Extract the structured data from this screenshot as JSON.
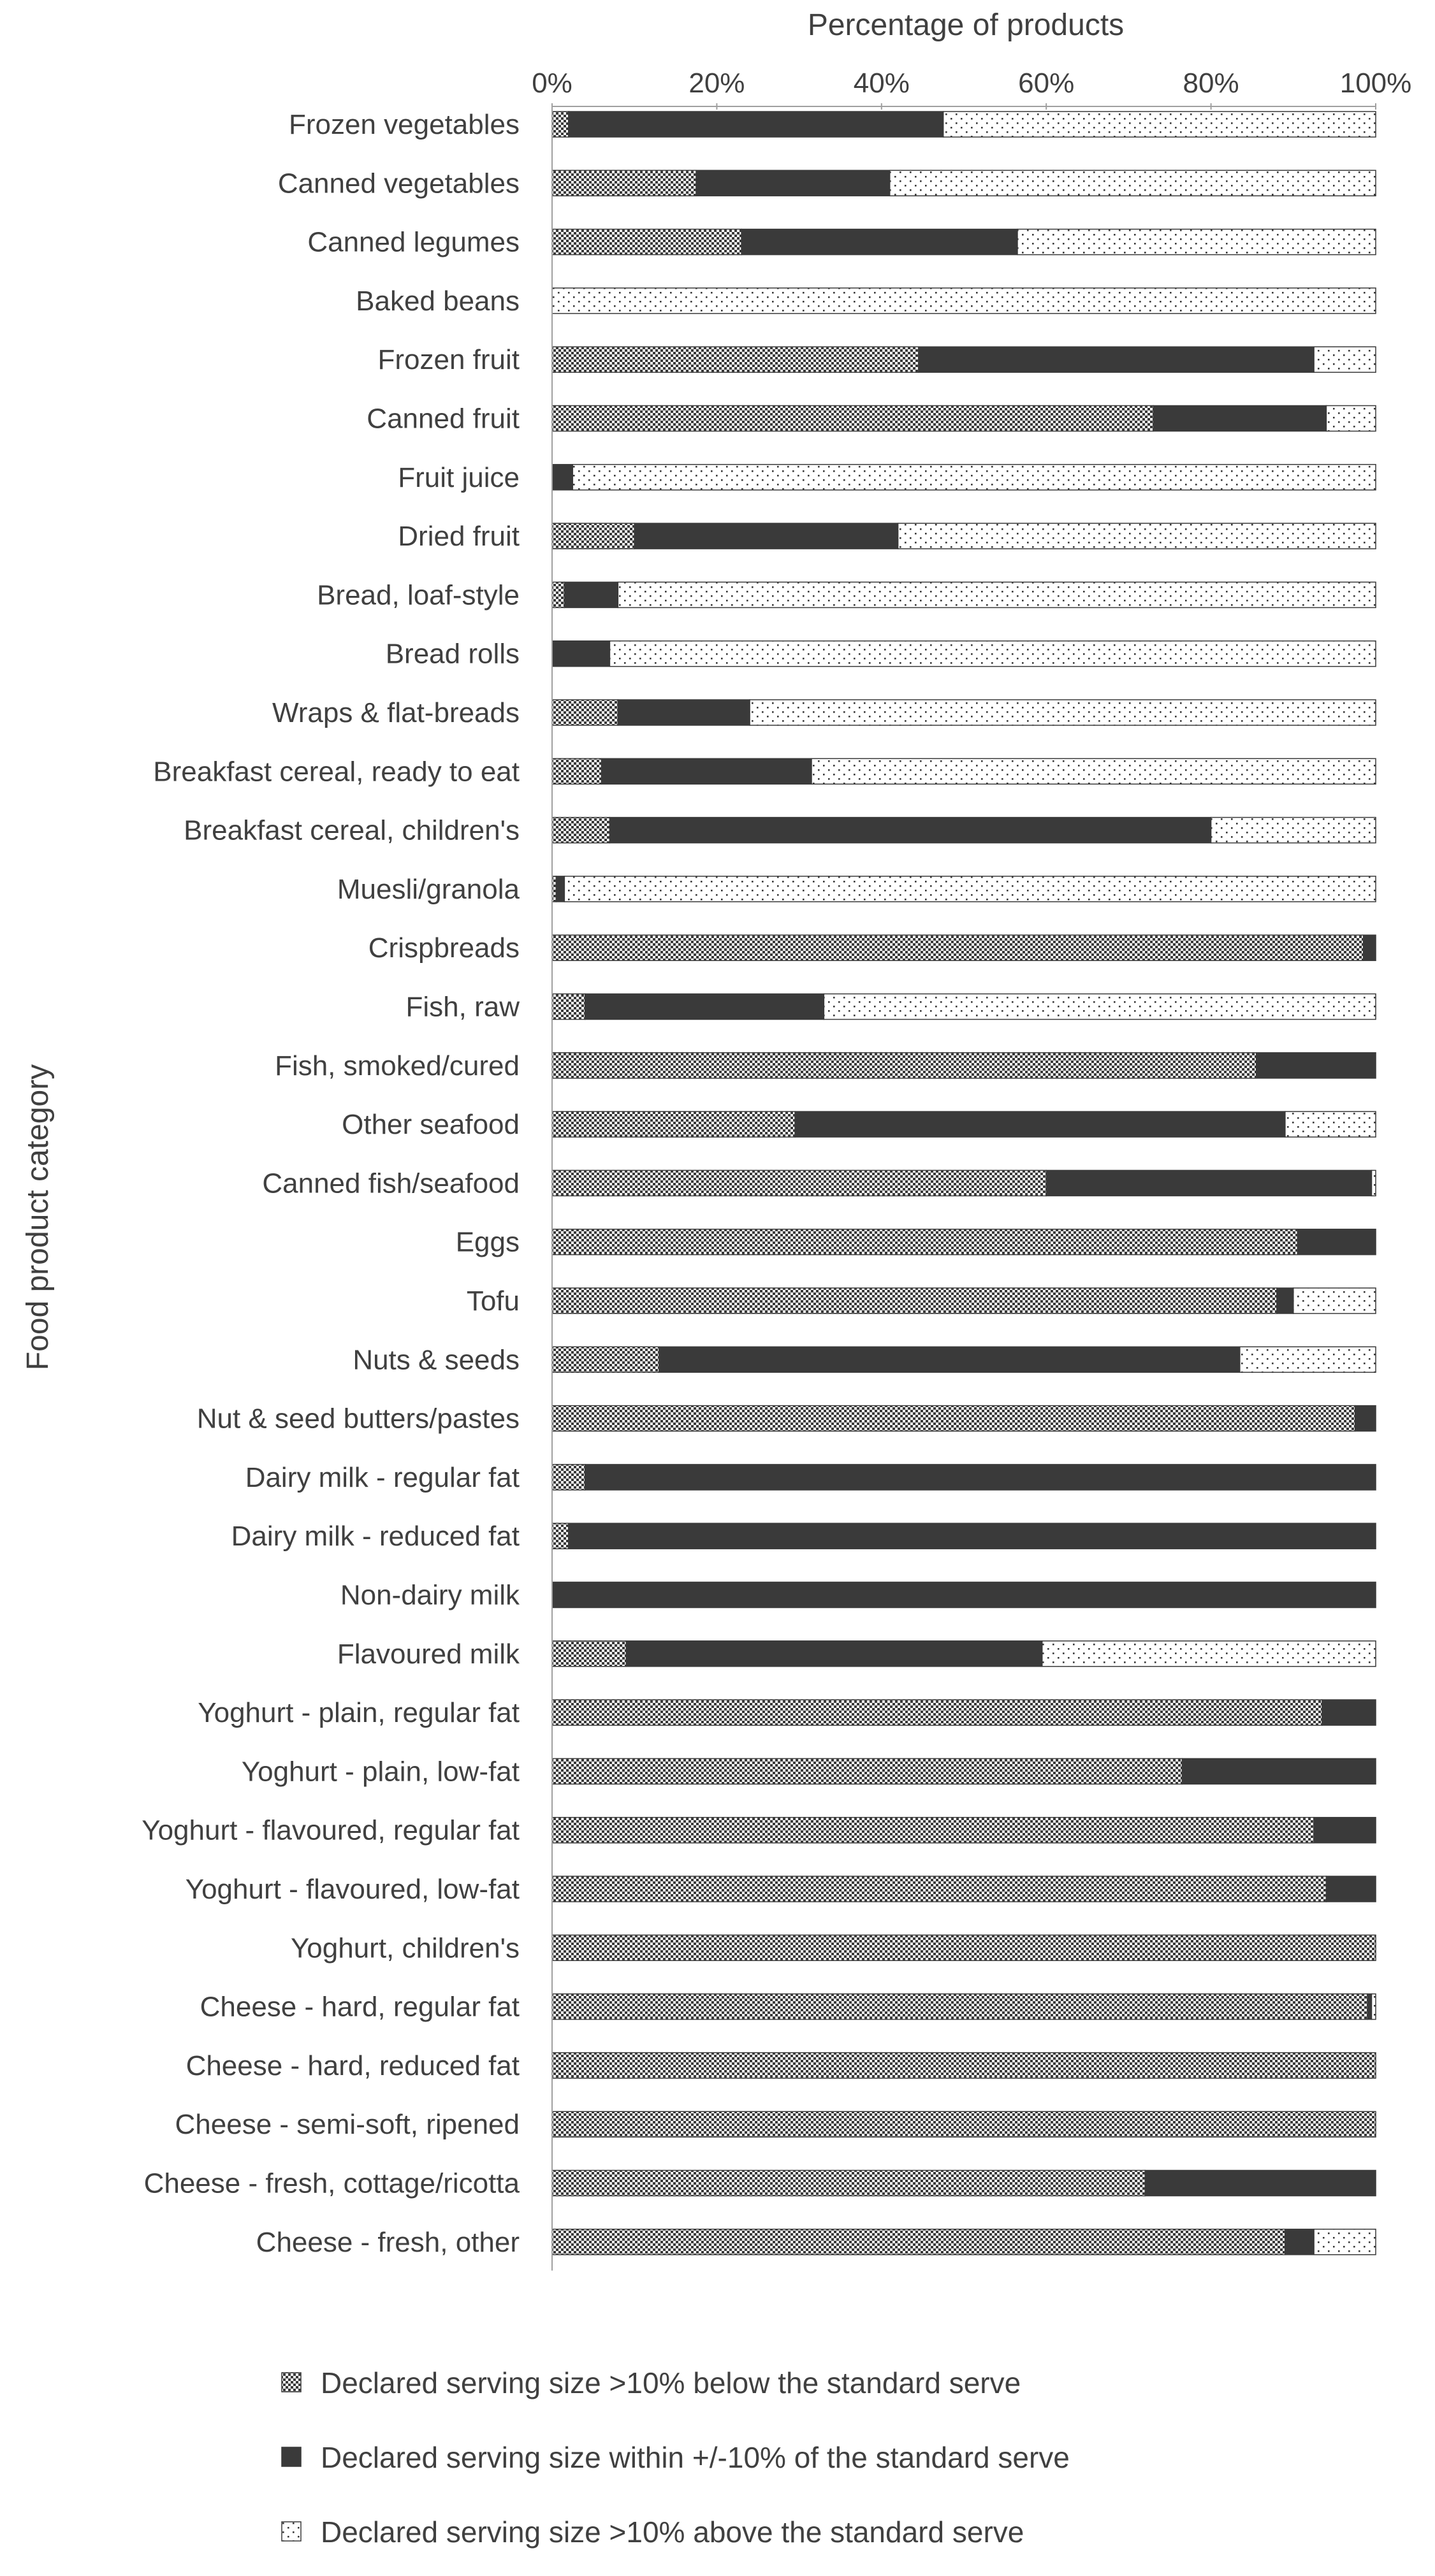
{
  "chart_data": {
    "type": "bar",
    "stacked": true,
    "orientation": "horizontal",
    "title": "",
    "xlabel": "Percentage of products",
    "ylabel": "Food product category",
    "xlim": [
      0,
      100
    ],
    "x_ticks": [
      "0%",
      "20%",
      "40%",
      "60%",
      "80%",
      "100%"
    ],
    "categories": [
      "Frozen vegetables",
      "Canned vegetables",
      "Canned legumes",
      "Baked beans",
      "Frozen fruit",
      "Canned fruit",
      "Fruit juice",
      "Dried fruit",
      "Bread, loaf-style",
      "Bread rolls",
      "Wraps & flat-breads",
      "Breakfast cereal, ready to eat",
      "Breakfast cereal, children's",
      "Muesli/granola",
      "Crispbreads",
      "Fish, raw",
      "Fish, smoked/cured",
      "Other seafood",
      "Canned fish/seafood",
      "Eggs",
      "Tofu",
      "Nuts & seeds",
      "Nut & seed butters/pastes",
      "Dairy milk - regular fat",
      "Dairy milk - reduced fat",
      "Non-dairy milk",
      "Flavoured milk",
      "Yoghurt - plain, regular fat",
      "Yoghurt - plain, low-fat",
      "Yoghurt - flavoured, regular fat",
      "Yoghurt - flavoured, low-fat",
      "Yoghurt, children's",
      "Cheese - hard, regular fat",
      "Cheese - hard, reduced fat",
      "Cheese - semi-soft, ripened",
      "Cheese - fresh, cottage/ricotta",
      "Cheese - fresh, other"
    ],
    "series": [
      {
        "name": "Declared serving size >10% below the standard serve",
        "pattern": "checker",
        "values": [
          2,
          17.5,
          23,
          0,
          44.5,
          73,
          0,
          10,
          1.5,
          0,
          8,
          6,
          7,
          0.5,
          98.5,
          4,
          85.5,
          29.5,
          60,
          90.5,
          88,
          13,
          97.5,
          4,
          2,
          0,
          9,
          93.5,
          76.5,
          92.5,
          94,
          100,
          99,
          100,
          100,
          72,
          89
        ]
      },
      {
        "name": "Declared serving size within +/-10% of the standard serve",
        "pattern": "solid",
        "values": [
          45.5,
          23.5,
          33.5,
          0,
          48,
          21,
          2.5,
          32,
          6.5,
          7,
          16,
          25.5,
          73,
          1,
          1.5,
          29,
          14.5,
          59.5,
          39.5,
          9.5,
          2,
          70.5,
          2.5,
          96,
          98,
          100,
          50.5,
          6.5,
          23.5,
          7.5,
          6,
          0,
          0.5,
          0,
          0,
          28,
          3.5
        ]
      },
      {
        "name": "Declared serving size >10% above the standard serve",
        "pattern": "dotted",
        "values": [
          52.5,
          59,
          43.5,
          100,
          7.5,
          6,
          97.5,
          58,
          92,
          93,
          76,
          68.5,
          20,
          98.5,
          0,
          67,
          0,
          11,
          0.5,
          0,
          10,
          16.5,
          0,
          0,
          0,
          0,
          40.5,
          0,
          0,
          0,
          0,
          0,
          0.5,
          0,
          0,
          0,
          7.5
        ]
      }
    ]
  },
  "colors": {
    "dark": "#3a3a3a",
    "text": "#404040",
    "background": "#ffffff"
  }
}
